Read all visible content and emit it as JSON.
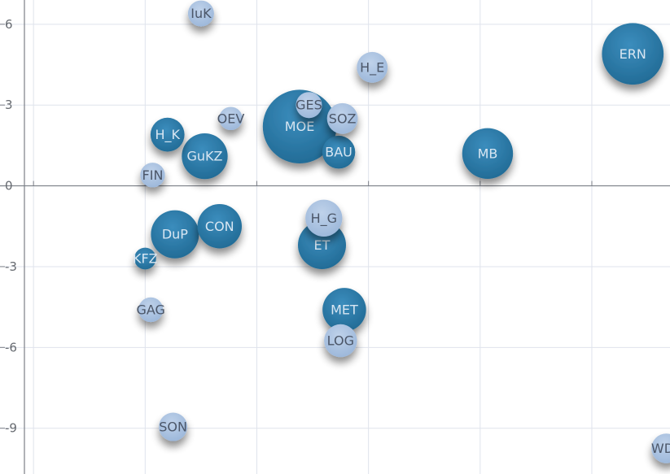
{
  "chart_data": {
    "type": "scatter",
    "subtype": "bubble",
    "title": "",
    "xlabel": "",
    "ylabel": "",
    "xlim": [
      -6.9,
      11.1
    ],
    "ylim": [
      -10.7,
      6.9
    ],
    "x_ticks": [
      -6,
      -3,
      0,
      3,
      6,
      9
    ],
    "y_ticks": [
      6,
      3,
      0,
      -3,
      -6,
      -9
    ],
    "y_tick_labels": [
      "6",
      "3",
      "0",
      "-3",
      "-6",
      "-9"
    ],
    "grid": true,
    "colors": {
      "dark": "#2b78a6",
      "light": "#a9c2e0",
      "grid": "#dfe3ec",
      "axis": "#7b7f87"
    },
    "points": [
      {
        "label": "IuK",
        "x": -1.5,
        "y": 6.4,
        "size": 1.0,
        "color": "light"
      },
      {
        "label": "ERN",
        "x": 10.1,
        "y": 4.9,
        "size": 5.6,
        "color": "dark"
      },
      {
        "label": "H_E",
        "x": 3.1,
        "y": 4.4,
        "size": 1.4,
        "color": "light"
      },
      {
        "label": "GES",
        "x": 1.4,
        "y": 3.0,
        "size": 1.0,
        "color": "light"
      },
      {
        "label": "MOE",
        "x": 1.15,
        "y": 2.2,
        "size": 8.0,
        "color": "dark"
      },
      {
        "label": "OEV",
        "x": -0.7,
        "y": 2.5,
        "size": 0.8,
        "color": "light"
      },
      {
        "label": "SOZ",
        "x": 2.3,
        "y": 2.5,
        "size": 1.4,
        "color": "light"
      },
      {
        "label": "H_K",
        "x": -2.4,
        "y": 1.9,
        "size": 1.7,
        "color": "dark"
      },
      {
        "label": "GuKZ",
        "x": -1.4,
        "y": 1.1,
        "size": 3.1,
        "color": "dark"
      },
      {
        "label": "BAU",
        "x": 2.2,
        "y": 1.25,
        "size": 1.6,
        "color": "dark"
      },
      {
        "label": "MB",
        "x": 6.2,
        "y": 1.2,
        "size": 3.8,
        "color": "dark"
      },
      {
        "label": "FIN",
        "x": -2.8,
        "y": 0.4,
        "size": 0.9,
        "color": "light"
      },
      {
        "label": "H_G",
        "x": 1.8,
        "y": -1.2,
        "size": 2.0,
        "color": "light"
      },
      {
        "label": "CON",
        "x": -1.0,
        "y": -1.5,
        "size": 2.9,
        "color": "dark"
      },
      {
        "label": "DuP",
        "x": -2.2,
        "y": -1.8,
        "size": 3.4,
        "color": "dark"
      },
      {
        "label": "ET",
        "x": 1.75,
        "y": -2.2,
        "size": 3.4,
        "color": "dark"
      },
      {
        "label": "KFZ",
        "x": -3.0,
        "y": -2.7,
        "size": 0.7,
        "color": "dark"
      },
      {
        "label": "MET",
        "x": 2.35,
        "y": -4.6,
        "size": 2.8,
        "color": "dark"
      },
      {
        "label": "GAG",
        "x": -2.85,
        "y": -4.6,
        "size": 0.9,
        "color": "light"
      },
      {
        "label": "LOG",
        "x": 2.25,
        "y": -5.75,
        "size": 1.6,
        "color": "light"
      },
      {
        "label": "SON",
        "x": -2.25,
        "y": -8.95,
        "size": 1.2,
        "color": "light"
      },
      {
        "label": "WDL",
        "x": 11.0,
        "y": -9.75,
        "size": 1.3,
        "color": "light"
      }
    ]
  }
}
